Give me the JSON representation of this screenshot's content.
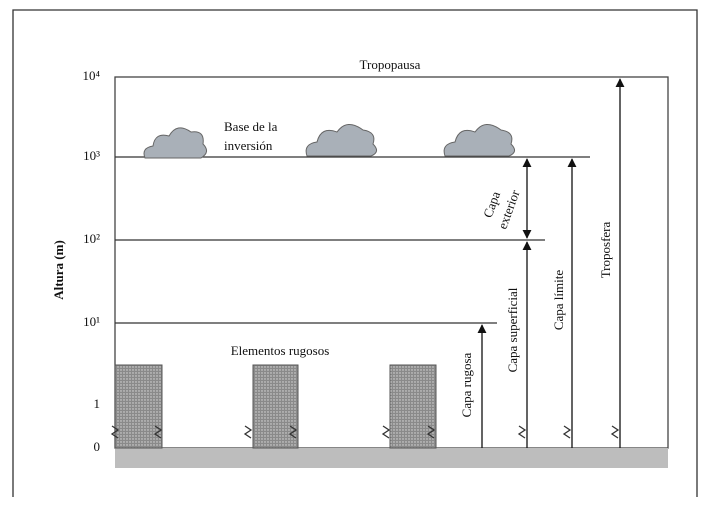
{
  "title": "Tropopausa",
  "axis": {
    "title": "Altura (m)",
    "ticks": [
      "10⁴",
      "10³",
      "10²",
      "10¹",
      "1",
      "0"
    ]
  },
  "inversion": [
    "Base de la",
    "inversión"
  ],
  "roughness": "Elementos rugosos",
  "layers": {
    "exterior": [
      "Capa",
      "exterior"
    ],
    "surface": "Capa superficial",
    "boundary": "Capa límite",
    "troposphere": "Troposfera",
    "rough": "Capa rugosa"
  }
}
